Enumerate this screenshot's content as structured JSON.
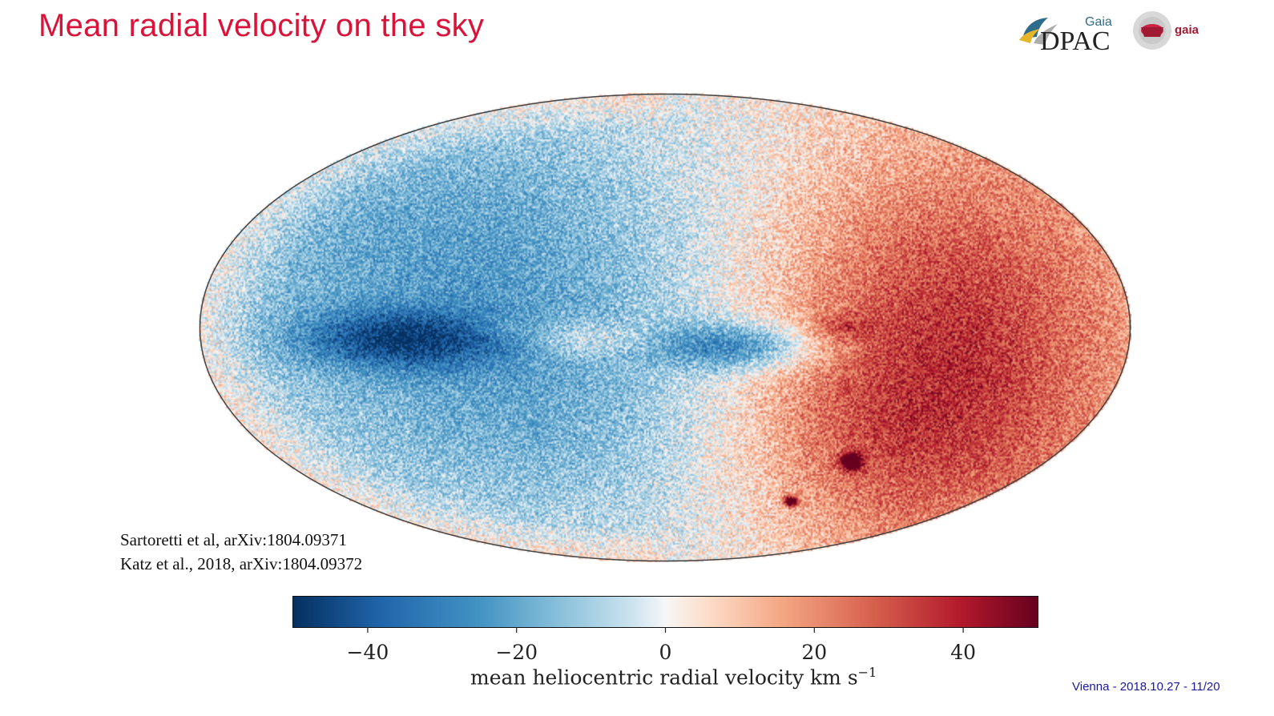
{
  "slide": {
    "title": "Mean radial velocity on the sky",
    "footer": "Vienna - 2018.10.27 - 11/20"
  },
  "logos": {
    "dpac_small": "Gaia",
    "dpac_big": "DPAC",
    "gaia": "gaia"
  },
  "references": [
    "Sartoretti et al, arXiv:1804.09371",
    "Katz et al., 2018, arXiv:1804.09372"
  ],
  "colors": {
    "title": "#d9133a",
    "footer": "#1a1aa0",
    "cmap_low": "#08306b",
    "cmap_mid": "#f7f7f7",
    "cmap_high": "#67000d"
  },
  "chart_data": {
    "type": "heatmap",
    "projection": "Aitoff/Hammer all-sky",
    "colormap": "RdBu_r",
    "vlim": [
      -50,
      50
    ],
    "colorbar": {
      "ticks": [
        -40,
        -20,
        0,
        20,
        40
      ],
      "tick_labels": [
        "−40",
        "−20",
        "0",
        "20",
        "40"
      ],
      "label_main": "mean heliocentric radial velocity km s",
      "label_sup": "−1"
    },
    "features": [
      {
        "region": "left lobe near plane",
        "mean_rv": -35
      },
      {
        "region": "galactic centre",
        "mean_rv": 12
      },
      {
        "region": "centre-right lobe",
        "mean_rv": -32
      },
      {
        "region": "right lobe near plane",
        "mean_rv": 45
      },
      {
        "region": "LMC",
        "mean_rv": 50
      },
      {
        "region": "SMC",
        "mean_rv": 50
      }
    ]
  }
}
